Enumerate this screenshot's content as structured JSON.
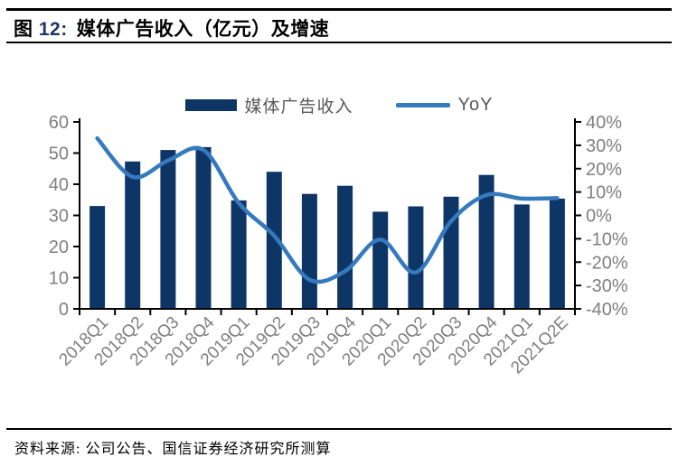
{
  "figure": {
    "label_prefix": "图 ",
    "number": "12:",
    "title": "媒体广告收入（亿元）及增速",
    "source": "资料来源: 公司公告、国信证券经济研究所测算"
  },
  "chart_data": {
    "type": "bar",
    "subtype": "bar+line combo, dual axis",
    "title": "媒体广告收入（亿元）及增速",
    "categories": [
      "2018Q1",
      "2018Q2",
      "2018Q3",
      "2018Q4",
      "2019Q1",
      "2019Q2",
      "2019Q3",
      "2019Q4",
      "2020Q1",
      "2020Q2",
      "2020Q3",
      "2020Q4",
      "2021Q1",
      "2021Q2E"
    ],
    "series": [
      {
        "name": "媒体广告收入",
        "type": "bar",
        "axis": "left",
        "color": "#0D3667",
        "values": [
          33.0,
          47.3,
          51.0,
          51.9,
          34.8,
          44.0,
          36.9,
          39.5,
          31.2,
          32.9,
          36.0,
          43.0,
          33.5,
          35.4
        ]
      },
      {
        "name": "YoY",
        "type": "line",
        "axis": "right",
        "color": "#3579BE",
        "values": [
          33.0,
          16.5,
          23.5,
          28.0,
          5.3,
          -8.7,
          -27.5,
          -23.9,
          -10.3,
          -24.4,
          -2.5,
          8.7,
          7.2,
          7.4
        ]
      }
    ],
    "left_axis": {
      "min": 0,
      "max": 60,
      "step": 10,
      "tick_labels_top_to_bottom": [
        "60",
        "50",
        "40",
        "30",
        "20",
        "10",
        "0"
      ]
    },
    "right_axis": {
      "min": -40,
      "max": 40,
      "step": 10,
      "tick_labels_top_to_bottom": [
        "40%",
        "30%",
        "20%",
        "10%",
        "0%",
        "-10%",
        "-20%",
        "-30%",
        "-40%"
      ]
    },
    "legend_position": "top-center",
    "grid": false,
    "x_label_rotation_deg": -45,
    "axis_label_color": "#7f7f7f",
    "axis_line_color": "#000000"
  }
}
